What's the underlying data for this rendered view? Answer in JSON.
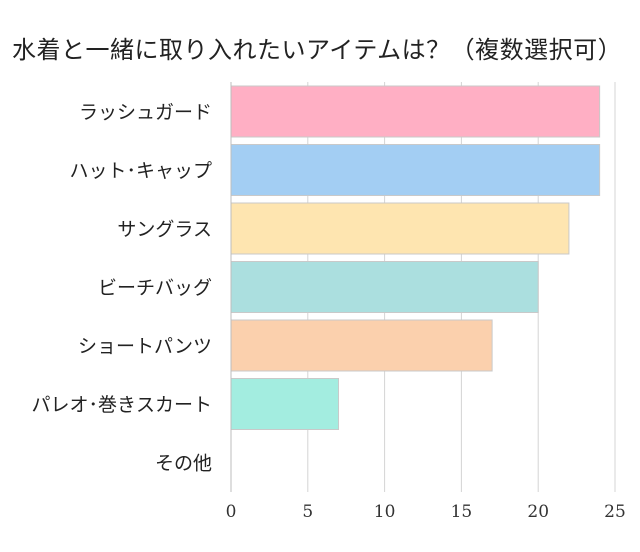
{
  "chart_data": {
    "type": "bar",
    "orientation": "horizontal",
    "title": "水着と一緒に取り入れたいアイテムは？（複数選択可）",
    "categories": [
      "ラッシュガード",
      "ハット･キャップ",
      "サングラス",
      "ビーチバッグ",
      "ショートパンツ",
      "パレオ･巻きスカート",
      "その他"
    ],
    "values": [
      24,
      24,
      22,
      20,
      17,
      7,
      0
    ],
    "colors": [
      "#ffafc4",
      "#a3cef3",
      "#fee5b0",
      "#abdfdf",
      "#fbd0ad",
      "#a3ede0",
      "#cccccc"
    ],
    "xlim": [
      0,
      25
    ],
    "xticks": [
      0,
      5,
      10,
      15,
      20,
      25
    ],
    "grid": true,
    "xlabel": "",
    "ylabel": ""
  }
}
